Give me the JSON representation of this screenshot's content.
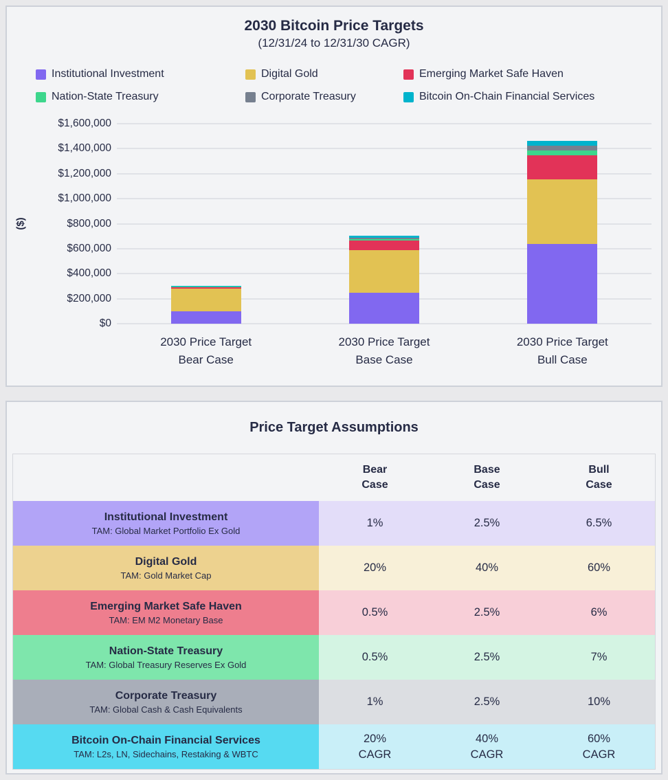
{
  "chart": {
    "title": "2030 Bitcoin Price Targets",
    "subtitle": "(12/31/24 to 12/31/30 CAGR)",
    "ylabel": "($)"
  },
  "chart_data": {
    "type": "bar",
    "stacked": true,
    "categories": [
      [
        "2030 Price Target",
        "Bear Case"
      ],
      [
        "2030 Price Target",
        "Base Case"
      ],
      [
        "2030 Price Target",
        "Bull Case"
      ]
    ],
    "series": [
      {
        "name": "Institutional Investment",
        "color": "#8168f0",
        "values": [
          100000,
          245000,
          637000
        ]
      },
      {
        "name": "Digital Gold",
        "color": "#e2c253",
        "values": [
          182000,
          345000,
          516000
        ]
      },
      {
        "name": "Emerging Market Safe Haven",
        "color": "#e23358",
        "values": [
          11000,
          73000,
          193000
        ]
      },
      {
        "name": "Nation-State Treasury",
        "color": "#3dd68c",
        "values": [
          2000,
          15000,
          41000
        ]
      },
      {
        "name": "Corporate Treasury",
        "color": "#76808f",
        "values": [
          2000,
          10000,
          40000
        ]
      },
      {
        "name": "Bitcoin On-Chain Financial Services",
        "color": "#00b3cc",
        "values": [
          6000,
          18000,
          37000
        ]
      }
    ],
    "totals": [
      303000,
      706000,
      1464000
    ],
    "title": "2030 Bitcoin Price Targets",
    "xlabel": "",
    "ylabel": "($)",
    "ylim": [
      0,
      1600000
    ],
    "ytick_interval": 200000,
    "ytick_labels": [
      "$0",
      "$200,000",
      "$400,000",
      "$600,000",
      "$800,000",
      "$1,000,000",
      "$1,200,000",
      "$1,400,000",
      "$1,600,000"
    ],
    "grid": true,
    "legend_position": "top"
  },
  "assumptions": {
    "title": "Price Target Assumptions",
    "column_headers": [
      [
        "Bear",
        "Case"
      ],
      [
        "Base",
        "Case"
      ],
      [
        "Bull",
        "Case"
      ]
    ],
    "rows": [
      {
        "name": "Institutional Investment",
        "tam": "TAM: Global Market Portfolio Ex Gold",
        "values": [
          [
            "1%"
          ],
          [
            "2.5%"
          ],
          [
            "6.5%"
          ]
        ],
        "label_bg": "#b2a4f7",
        "value_bg": "#e3ddf9"
      },
      {
        "name": "Digital Gold",
        "tam": "TAM: Gold Market Cap",
        "values": [
          [
            "20%"
          ],
          [
            "40%"
          ],
          [
            "60%"
          ]
        ],
        "label_bg": "#edd28f",
        "value_bg": "#f8f0d8"
      },
      {
        "name": "Emerging Market Safe Haven",
        "tam": "TAM: EM M2 Monetary Base",
        "values": [
          [
            "0.5%"
          ],
          [
            "2.5%"
          ],
          [
            "6%"
          ]
        ],
        "label_bg": "#ee7e8e",
        "value_bg": "#f8cfd8"
      },
      {
        "name": "Nation-State Treasury",
        "tam": "TAM: Global Treasury Reserves Ex Gold",
        "values": [
          [
            "0.5%"
          ],
          [
            "2.5%"
          ],
          [
            "7%"
          ]
        ],
        "label_bg": "#7ee6ac",
        "value_bg": "#d4f4e3"
      },
      {
        "name": "Corporate Treasury",
        "tam": "TAM: Global Cash & Cash Equivalents",
        "values": [
          [
            "1%"
          ],
          [
            "2.5%"
          ],
          [
            "10%"
          ]
        ],
        "label_bg": "#a9aeb9",
        "value_bg": "#dcdee2"
      },
      {
        "name": "Bitcoin On-Chain Financial Services",
        "tam": "TAM: L2s, LN, Sidechains, Restaking & WBTC",
        "values": [
          [
            "20%",
            "CAGR"
          ],
          [
            "40%",
            "CAGR"
          ],
          [
            "60%",
            "CAGR"
          ]
        ],
        "label_bg": "#56daf1",
        "value_bg": "#c9eff8"
      }
    ]
  }
}
